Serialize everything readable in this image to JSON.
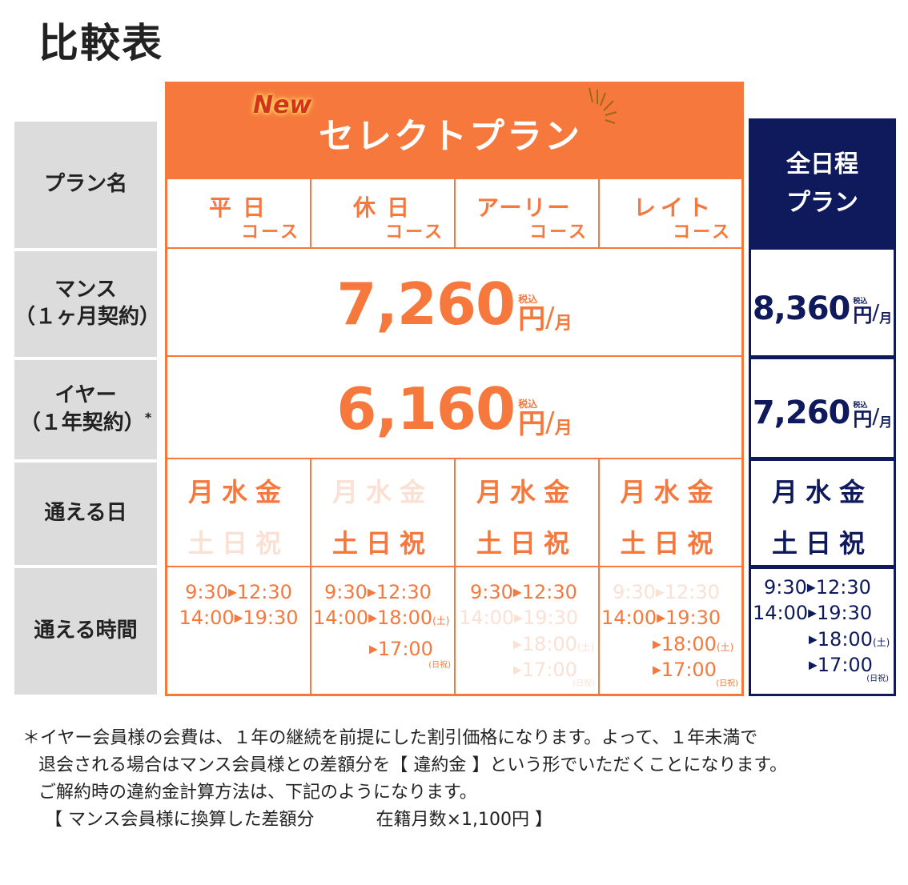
{
  "title": "比較表",
  "header": {
    "new_badge": "New",
    "select_plan": "セレクトプラン",
    "all_day_line1": "全日程",
    "all_day_line2": "プラン"
  },
  "row_labels": {
    "plan_name": "プラン名",
    "month_line1": "マンス",
    "month_line2": "（１ヶ月契約）",
    "year_line1": "イヤー",
    "year_line2": "（１年契約）",
    "year_mark": "*",
    "days": "通える日",
    "hours": "通える時間"
  },
  "courses": [
    {
      "a": "平日",
      "b": "コース"
    },
    {
      "a": "休日",
      "b": "コース"
    },
    {
      "a": "アーリー",
      "b": "コース"
    },
    {
      "a": "レイト",
      "b": "コース"
    }
  ],
  "prices": {
    "select_month": "7,260",
    "select_year": "6,160",
    "all_month": "8,360",
    "all_year": "7,260",
    "tax": "税込",
    "yen": "円",
    "slash": "/",
    "per": "月"
  },
  "days": {
    "weekday_line": "月水金",
    "weekend_line": "土日祝"
  },
  "times": {
    "t1": "9:30",
    "t2": "12:30",
    "t3": "14:00",
    "t4": "19:30",
    "t5": "18:00",
    "t6": "17:00",
    "sat": "(土)",
    "holiday": "(日祝)",
    "arrow": "▶"
  },
  "notes": {
    "line1": "＊イヤー会員様の会費は、１年の継続を前提にした割引価格になります。よって、１年未満で",
    "line2": "退会される場合はマンス会員様との差額分を【 違約金 】という形でいただくことになります。",
    "line3": "ご解約時の違約金計算方法は、下記のようになります。",
    "line4a": "【 マンス会員様に換算した差額分",
    "line4b": "在籍月数×1,100円 】"
  },
  "colors": {
    "orange": "#f6783c",
    "navy": "#0f1a5c",
    "label_gray": "#dcdcdc",
    "faded": "#fbe0d4"
  }
}
